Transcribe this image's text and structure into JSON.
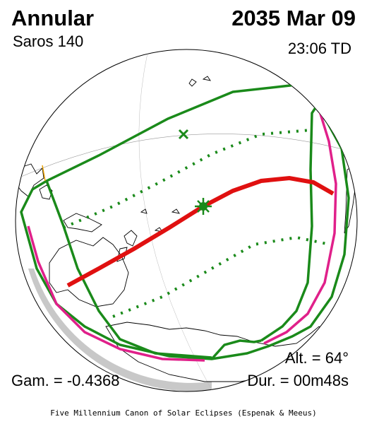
{
  "header": {
    "eclipse_type": "Annular",
    "saros": "Saros 140",
    "date": "2035 Mar 09",
    "time": "23:06 TD"
  },
  "stats": {
    "altitude": "Alt. = 64°",
    "gamma": "Gam. = -0.4368",
    "duration": "Dur. = 00m48s"
  },
  "footer": {
    "credit": "Five Millennium Canon of Solar Eclipses (Espenak & Meeus)"
  },
  "colors": {
    "central_path": "#e01010",
    "penumbral_limits": "#1a8a1a",
    "rise_set_curves": "#e0208a",
    "coastline": "#000000",
    "night_shade": "#c8c8c8",
    "sunrise_sunset_edge": "#e8a000"
  }
}
